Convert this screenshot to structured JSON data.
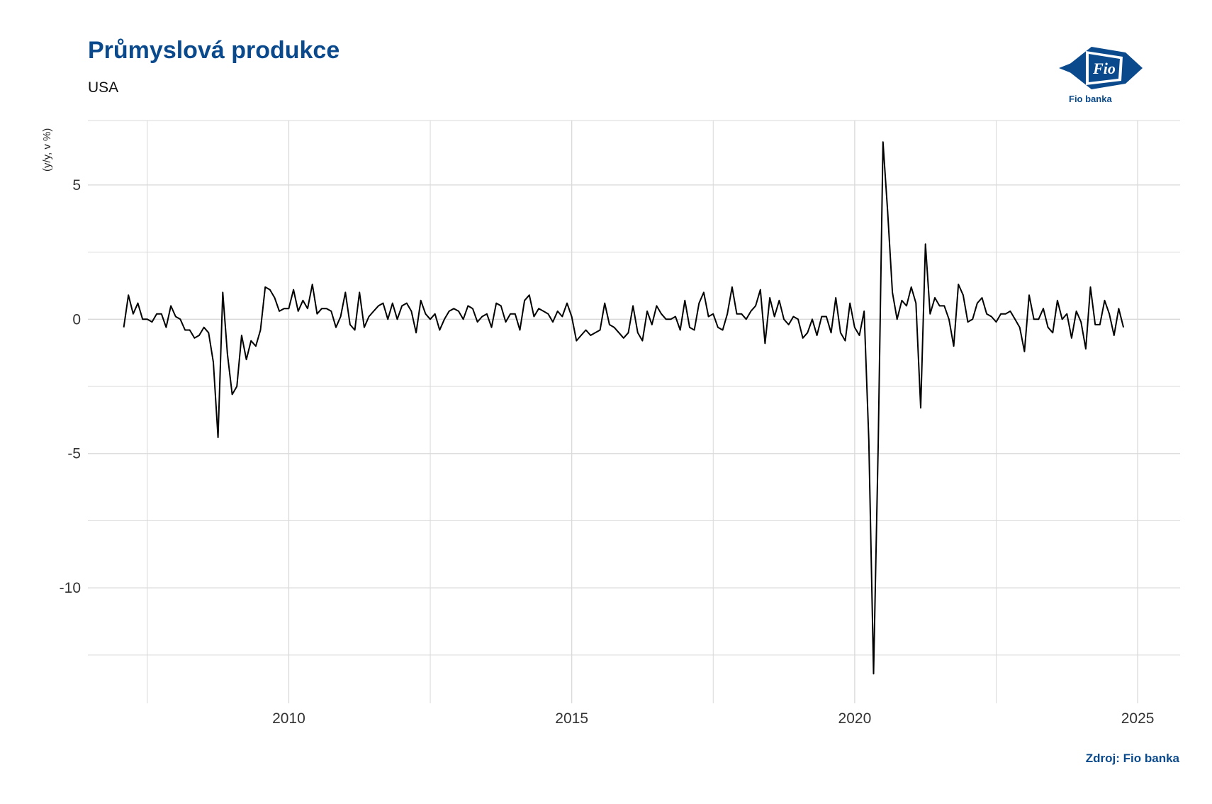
{
  "header": {
    "title": "Průmyslová produkce",
    "subtitle": "USA"
  },
  "logo": {
    "mark": "Fio",
    "caption": "Fio banka",
    "color": "#0a4a8c"
  },
  "footer": {
    "source": "Zdroj: Fio banka"
  },
  "chart_data": {
    "type": "line",
    "ylabel": "(y/y, v %)",
    "xlabel": "",
    "xlim": [
      2006.45,
      2025.75
    ],
    "ylim": [
      -14.3,
      7.4
    ],
    "x_ticks": [
      2010,
      2015,
      2020,
      2025
    ],
    "x_tick_labels": [
      "2010",
      "2015",
      "2020",
      "2025"
    ],
    "x_minor_ticks": [
      2007.5,
      2012.5,
      2017.5,
      2022.5
    ],
    "y_ticks": [
      -10,
      -5,
      0,
      5
    ],
    "y_tick_labels": [
      "-10",
      "-5",
      "0",
      "5"
    ],
    "y_minor_ticks": [
      -12.5,
      -7.5,
      -2.5,
      2.5
    ],
    "grid": true,
    "legend": "none",
    "colors": {
      "line": "#000000",
      "grid": "#d9d9d9"
    },
    "x_start": 2007.0833,
    "x_step": 0.08333,
    "values": [
      -0.3,
      0.9,
      0.2,
      0.6,
      0.0,
      0.0,
      -0.1,
      0.2,
      0.2,
      -0.3,
      0.5,
      0.1,
      0.0,
      -0.4,
      -0.4,
      -0.7,
      -0.6,
      -0.3,
      -0.5,
      -1.6,
      -4.4,
      1.0,
      -1.3,
      -2.8,
      -2.5,
      -0.6,
      -1.5,
      -0.8,
      -1.0,
      -0.4,
      1.2,
      1.1,
      0.8,
      0.3,
      0.4,
      0.4,
      1.1,
      0.3,
      0.7,
      0.4,
      1.3,
      0.2,
      0.4,
      0.4,
      0.3,
      -0.3,
      0.1,
      1.0,
      -0.2,
      -0.4,
      1.0,
      -0.3,
      0.1,
      0.3,
      0.5,
      0.6,
      0.0,
      0.6,
      0.0,
      0.5,
      0.6,
      0.3,
      -0.5,
      0.7,
      0.2,
      0.0,
      0.2,
      -0.4,
      0.0,
      0.3,
      0.4,
      0.3,
      0.0,
      0.5,
      0.4,
      -0.1,
      0.1,
      0.2,
      -0.3,
      0.6,
      0.5,
      -0.1,
      0.2,
      0.2,
      -0.4,
      0.7,
      0.9,
      0.1,
      0.4,
      0.3,
      0.2,
      -0.1,
      0.3,
      0.1,
      0.6,
      0.1,
      -0.8,
      -0.6,
      -0.4,
      -0.6,
      -0.5,
      -0.4,
      0.6,
      -0.2,
      -0.3,
      -0.5,
      -0.7,
      -0.5,
      0.5,
      -0.5,
      -0.8,
      0.3,
      -0.2,
      0.5,
      0.2,
      0.0,
      0.0,
      0.1,
      -0.4,
      0.7,
      -0.3,
      -0.4,
      0.6,
      1.0,
      0.1,
      0.2,
      -0.3,
      -0.4,
      0.2,
      1.2,
      0.2,
      0.2,
      0.0,
      0.3,
      0.5,
      1.1,
      -0.9,
      0.8,
      0.1,
      0.7,
      0.0,
      -0.2,
      0.1,
      0.0,
      -0.7,
      -0.5,
      0.0,
      -0.6,
      0.1,
      0.1,
      -0.5,
      0.8,
      -0.5,
      -0.8,
      0.6,
      -0.3,
      -0.6,
      0.3,
      -4.5,
      -13.2,
      -4.6,
      6.6,
      4.0,
      1.0,
      0.0,
      0.7,
      0.5,
      1.2,
      0.6,
      -3.3,
      2.8,
      0.2,
      0.8,
      0.5,
      0.5,
      0.0,
      -1.0,
      1.3,
      0.9,
      -0.1,
      0.0,
      0.6,
      0.8,
      0.2,
      0.1,
      -0.1,
      0.2,
      0.2,
      0.3,
      0.0,
      -0.3,
      -1.2,
      0.9,
      0.0,
      0.0,
      0.4,
      -0.3,
      -0.5,
      0.7,
      0.0,
      0.2,
      -0.7,
      0.3,
      -0.1,
      -1.1,
      1.2,
      -0.2,
      -0.2,
      0.7,
      0.2,
      -0.6,
      0.4,
      -0.3
    ]
  }
}
